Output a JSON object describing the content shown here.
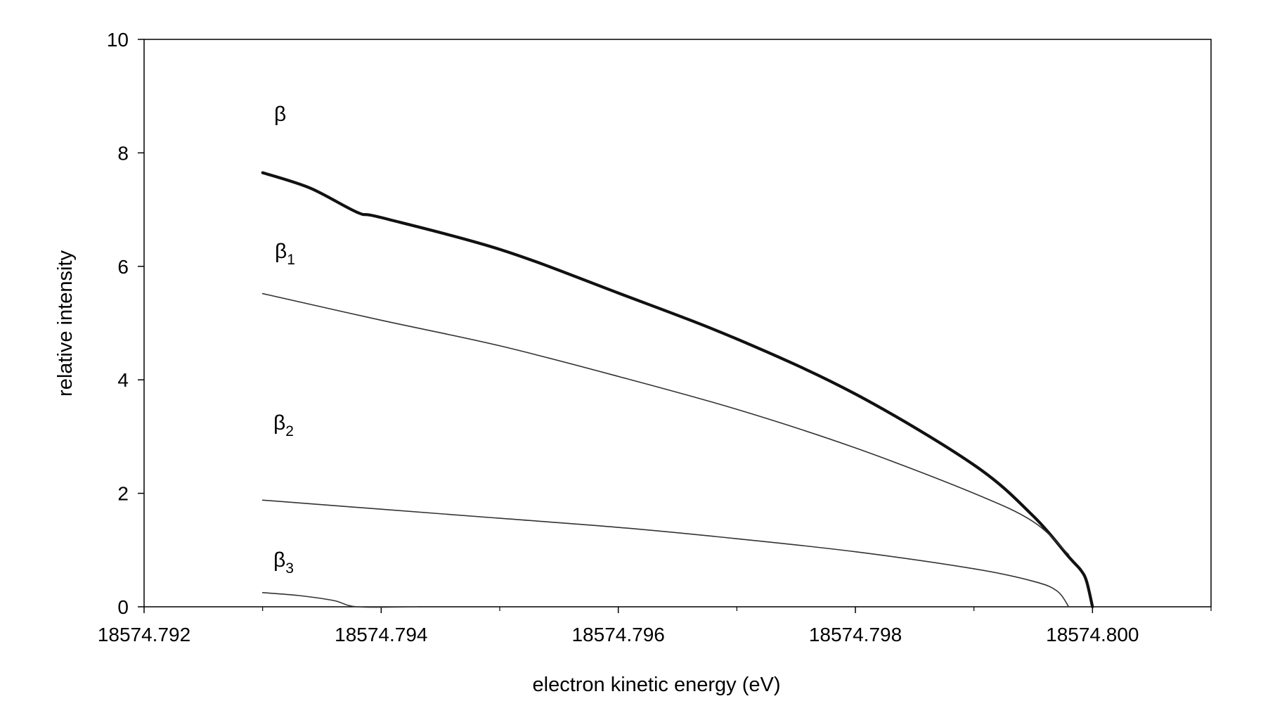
{
  "chart_data": {
    "type": "line",
    "xlabel": "electron kinetic energy (eV)",
    "ylabel": "relative intensity",
    "xlim": [
      18574.792,
      18574.801
    ],
    "ylim": [
      0,
      10
    ],
    "x_ticks": [
      18574.792,
      18574.794,
      18574.796,
      18574.798,
      18574.8
    ],
    "x_tick_labels": [
      "18574.792",
      "18574.794",
      "18574.796",
      "18574.798",
      "18574.800"
    ],
    "x_minor_ticks": [
      18574.793,
      18574.795,
      18574.797,
      18574.799,
      18574.801
    ],
    "y_ticks": [
      0,
      2,
      4,
      6,
      8,
      10
    ],
    "y_tick_labels": [
      "0",
      "2",
      "4",
      "6",
      "8",
      "10"
    ],
    "grid": false,
    "legend": "none",
    "series": [
      {
        "label_base": "β",
        "label_sub": "",
        "color": "#111111",
        "weight": "bold",
        "points": [
          [
            18574.793,
            7.65
          ],
          [
            18574.7934,
            7.38
          ],
          [
            18574.7938,
            6.95
          ],
          [
            18574.794,
            6.86
          ],
          [
            18574.795,
            6.3
          ],
          [
            18574.796,
            5.53
          ],
          [
            18574.797,
            4.72
          ],
          [
            18574.798,
            3.75
          ],
          [
            18574.799,
            2.5
          ],
          [
            18574.7995,
            1.6
          ],
          [
            18574.7998,
            0.88
          ],
          [
            18574.7999,
            0.65
          ],
          [
            18574.79995,
            0.45
          ],
          [
            18574.8,
            0.0
          ]
        ]
      },
      {
        "label_base": "β",
        "label_sub": "1",
        "color": "#333333",
        "weight": "normal",
        "points": [
          [
            18574.793,
            5.52
          ],
          [
            18574.794,
            5.05
          ],
          [
            18574.795,
            4.6
          ],
          [
            18574.796,
            4.06
          ],
          [
            18574.797,
            3.48
          ],
          [
            18574.798,
            2.8
          ],
          [
            18574.799,
            2.0
          ],
          [
            18574.7995,
            1.5
          ],
          [
            18574.7998,
            0.92
          ]
        ]
      },
      {
        "label_base": "β",
        "label_sub": "2",
        "color": "#333333",
        "weight": "normal",
        "points": [
          [
            18574.793,
            1.88
          ],
          [
            18574.794,
            1.72
          ],
          [
            18574.795,
            1.56
          ],
          [
            18574.796,
            1.4
          ],
          [
            18574.797,
            1.2
          ],
          [
            18574.798,
            0.97
          ],
          [
            18574.799,
            0.67
          ],
          [
            18574.7995,
            0.45
          ],
          [
            18574.7997,
            0.28
          ],
          [
            18574.7998,
            0.0
          ]
        ]
      },
      {
        "label_base": "β",
        "label_sub": "3",
        "color": "#333333",
        "weight": "normal",
        "points": [
          [
            18574.793,
            0.25
          ],
          [
            18574.7933,
            0.2
          ],
          [
            18574.7936,
            0.11
          ],
          [
            18574.7938,
            0.0
          ],
          [
            18574.7943,
            0.0
          ]
        ]
      }
    ]
  }
}
